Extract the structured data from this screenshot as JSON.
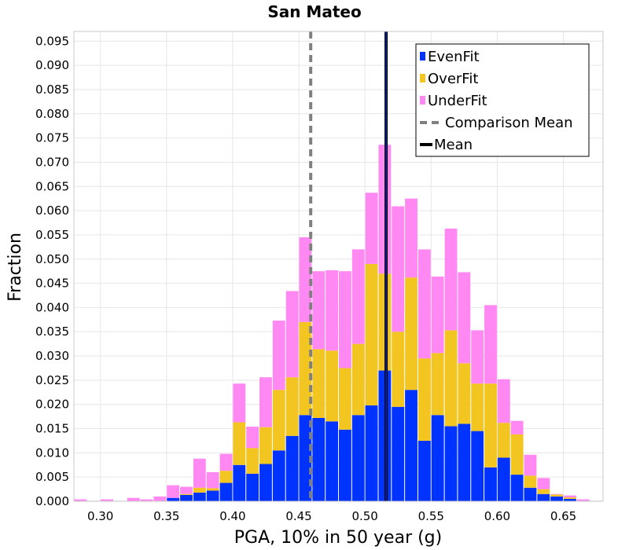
{
  "chart_data": {
    "type": "bar",
    "stacked": true,
    "title": "San Mateo",
    "xlabel": "PGA, 10% in 50 year (g)",
    "ylabel": "Fraction",
    "xlim": [
      0.28,
      0.68
    ],
    "ylim": [
      0,
      0.097
    ],
    "bin_width": 0.01,
    "grid": true,
    "legend_position": "top-right",
    "x_ticks": [
      "0.30",
      "0.35",
      "0.40",
      "0.45",
      "0.50",
      "0.55",
      "0.60",
      "0.65"
    ],
    "y_ticks": [
      "0.000",
      "0.005",
      "0.010",
      "0.015",
      "0.020",
      "0.025",
      "0.030",
      "0.035",
      "0.040",
      "0.045",
      "0.050",
      "0.055",
      "0.060",
      "0.065",
      "0.070",
      "0.075",
      "0.080",
      "0.085",
      "0.090",
      "0.095"
    ],
    "x": [
      0.285,
      0.295,
      0.305,
      0.315,
      0.325,
      0.335,
      0.345,
      0.355,
      0.365,
      0.375,
      0.385,
      0.395,
      0.405,
      0.415,
      0.425,
      0.435,
      0.445,
      0.455,
      0.465,
      0.475,
      0.485,
      0.495,
      0.505,
      0.515,
      0.525,
      0.535,
      0.545,
      0.555,
      0.565,
      0.575,
      0.585,
      0.595,
      0.605,
      0.615,
      0.625,
      0.635,
      0.645,
      0.655,
      0.665,
      0.675
    ],
    "series": [
      {
        "name": "EvenFit",
        "color": "#0033ff",
        "values": [
          0,
          0,
          0,
          0,
          0,
          0,
          0,
          0.0007,
          0.0013,
          0.0018,
          0.0022,
          0.0038,
          0.0075,
          0.0057,
          0.0077,
          0.0105,
          0.0135,
          0.0178,
          0.0172,
          0.0165,
          0.0148,
          0.0178,
          0.0198,
          0.027,
          0.0195,
          0.023,
          0.0125,
          0.0178,
          0.0155,
          0.016,
          0.0145,
          0.007,
          0.009,
          0.0055,
          0.0028,
          0.0015,
          0.001,
          0.0005,
          0.0001,
          0
        ]
      },
      {
        "name": "OverFit",
        "color": "#f2c520",
        "values": [
          0,
          0,
          0,
          0,
          0,
          0,
          0,
          0,
          0.0002,
          0.001,
          0.0005,
          0.0025,
          0.0088,
          0.0053,
          0.0076,
          0.0125,
          0.0121,
          0.0192,
          0.0142,
          0.0146,
          0.0127,
          0.0147,
          0.0292,
          0.02,
          0.0155,
          0.0232,
          0.017,
          0.0128,
          0.0198,
          0.0125,
          0.0098,
          0.0173,
          0.0072,
          0.0083,
          0.0025,
          0.001,
          0.0004,
          0.0003,
          0,
          0
        ]
      },
      {
        "name": "UnderFit",
        "color": "#ff88f2",
        "values": [
          0.0004,
          0.0001,
          0.0004,
          0.0001,
          0.0007,
          0.0004,
          0.001,
          0.0026,
          0.0015,
          0.006,
          0.0033,
          0.0035,
          0.008,
          0.0044,
          0.0103,
          0.0143,
          0.0178,
          0.0175,
          0.0161,
          0.0166,
          0.02,
          0.0195,
          0.0147,
          0.0266,
          0.0259,
          0.0163,
          0.0225,
          0.0158,
          0.021,
          0.0188,
          0.011,
          0.0162,
          0.009,
          0.0028,
          0.0043,
          0.0023,
          0.0001,
          0.0004,
          0.0003,
          0.0001
        ]
      }
    ],
    "vlines": [
      {
        "name": "Comparison Mean",
        "x": 0.459,
        "color": "#808080",
        "style": "dashed"
      },
      {
        "name": "Mean",
        "x": 0.516,
        "color": "#000000",
        "style": "solid"
      }
    ]
  }
}
